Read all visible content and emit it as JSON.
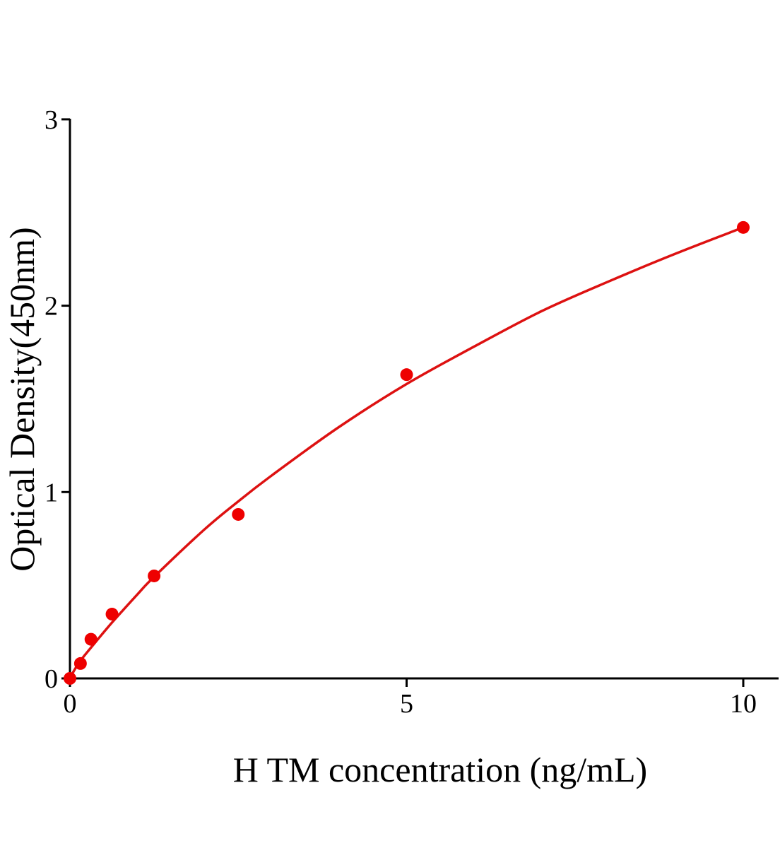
{
  "chart_data": {
    "type": "scatter",
    "title": "",
    "xlabel": "H TM concentration (ng/mL)",
    "ylabel": "Optical Density(450nm)",
    "xlim": [
      0,
      10.5
    ],
    "ylim": [
      0,
      3
    ],
    "x_ticks": [
      0,
      5,
      10
    ],
    "y_ticks": [
      0,
      1,
      2,
      3
    ],
    "x_tick_labels": [
      "0",
      "5",
      "10"
    ],
    "y_tick_labels": [
      "0",
      "1",
      "2",
      "3"
    ],
    "grid": false,
    "legend": "none",
    "series": [
      {
        "kind": "points",
        "color": "#ee0000",
        "x": [
          0,
          0.156,
          0.312,
          0.625,
          1.25,
          2.5,
          5,
          10
        ],
        "y": [
          0.0,
          0.08,
          0.21,
          0.345,
          0.55,
          0.88,
          1.63,
          2.42
        ]
      },
      {
        "kind": "fit-curve",
        "color": "#dd1111",
        "x": [
          0,
          0.05,
          0.156,
          0.312,
          0.625,
          1.0,
          1.25,
          2.0,
          2.5,
          3.0,
          4.0,
          5.0,
          6.0,
          7.0,
          8.0,
          9.0,
          10.0
        ],
        "y": [
          0.0,
          0.035,
          0.095,
          0.165,
          0.3,
          0.45,
          0.545,
          0.8,
          0.95,
          1.09,
          1.35,
          1.58,
          1.78,
          1.97,
          2.13,
          2.28,
          2.42
        ]
      }
    ]
  }
}
